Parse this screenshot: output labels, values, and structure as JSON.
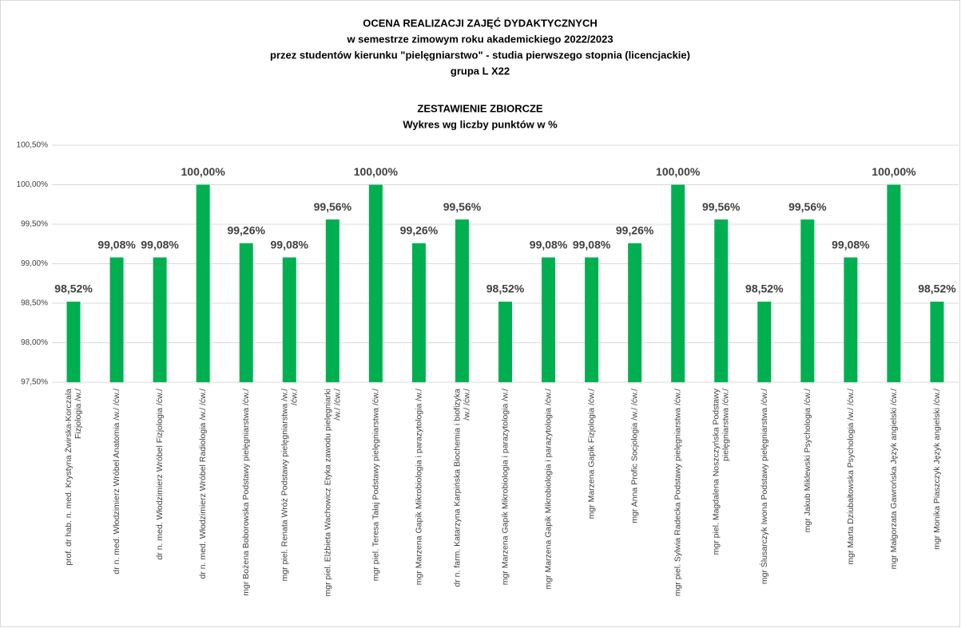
{
  "chart_data": {
    "type": "bar",
    "title": [
      "OCENA REALIZACJI ZAJĘĆ DYDAKTYCZNYCH",
      "w semestrze zimowym roku akademickiego 2022/2023",
      "przez studentów kierunku \"pielęgniarstwo\" - studia pierwszego stopnia (licencjackie)",
      "grupa L  X22"
    ],
    "subtitle": [
      "ZESTAWIENIE ZBIORCZE",
      "Wykres wg liczby punktów w %"
    ],
    "categories": [
      "prof. dr hab. n. med. Krystyna Żwirska-Korczala\nFizjologia /w./",
      "dr n. med. Włodzimierz Wróbel Anatomia /w./ /ćw./",
      "dr n. med. Włodzimierz Wróbel Fizjologia /ćw./",
      "dr n. med. Włodzimierz Wróbel Radiologia /w./ /ćw./",
      "mgr Bożena Boborowska Podstawy pielęgniarstwa /ćw./",
      "mgr piel. Renata Wróż Podstawy pielęgniarstwa /w./\n/ćw./",
      "mgr piel. Elżbieta Wachowicz Etyka zawodu pielęgniarki\n/w./ /ćw./",
      "mgr piel. Teresa Tałaj Podstawy pielęgniarstwa /ćw./",
      "mgr Marzena Gapik Mikrobiologia i parazytologia /w./",
      "dr n. farm. Katarzyna Karpińska Biochemia i biofizyka\n/w./ /ćw./",
      "mgr Marzena Gapik Mikrobiologia i parazytologia /w./",
      "mgr Marzena Gapik Mikrobiologia i parazytologia /ćw./",
      "mgr Marzena Gapik Fizjologia /ćw./",
      "mgr Anna Profic Socjologia /w./ /ćw./",
      "mgr piel. Sylwia Radecka Podstawy pielęgniarstwa /ćw./",
      "mgr piel. Magdalena Noszczyńska Podstawy\npielęgniarstwa /ćw./",
      "mgr Ślusarczyk Iwona Podstawy pielęgniarstwa /ćw./",
      "mgr Jakub Miklewski Psychologia /ćw./",
      "mgr Marta Dziubałtowska Psychologia  /w./ /ćw./",
      "mgr Małgorzata Gawrońska Język angielski /ćw./",
      "mgr Monika Piaszczyk Język angielski /ćw./"
    ],
    "values": [
      98.52,
      99.08,
      99.08,
      100,
      99.26,
      99.08,
      99.56,
      100,
      99.26,
      99.56,
      98.52,
      99.08,
      99.08,
      99.26,
      100,
      99.56,
      98.52,
      99.56,
      99.08,
      100,
      98.52
    ],
    "value_labels": [
      "98,52%",
      "99,08%",
      "99,08%",
      "100,00%",
      "99,26%",
      "99,08%",
      "99,56%",
      "100,00%",
      "99,26%",
      "99,56%",
      "98,52%",
      "99,08%",
      "99,08%",
      "99,26%",
      "100,00%",
      "99,56%",
      "98,52%",
      "99,56%",
      "99,08%",
      "100,00%",
      "98,52%"
    ],
    "color": "#00b050",
    "ylim": [
      97.5,
      100.5
    ],
    "yticks": [
      {
        "value": 97.5,
        "label": "97,50%"
      },
      {
        "value": 98,
        "label": "98,00%"
      },
      {
        "value": 98.5,
        "label": "98,50%"
      },
      {
        "value": 99,
        "label": "99,00%"
      },
      {
        "value": 99.5,
        "label": "99,50%"
      },
      {
        "value": 100,
        "label": "100,00%"
      },
      {
        "value": 100.5,
        "label": "100,50%"
      }
    ],
    "grid": true
  }
}
